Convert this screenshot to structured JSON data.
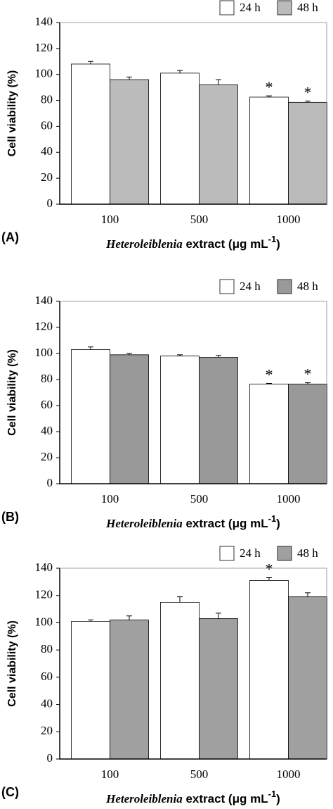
{
  "chart_data": [
    {
      "type": "bar",
      "panel_label": "(A)",
      "ylabel": "Cell viability (%)",
      "xlabel": {
        "italic": "Heteroleiblenia",
        "rest": " extract (μg mL",
        "sup": "-1",
        "end": ")"
      },
      "categories": [
        "100",
        "500",
        "1000"
      ],
      "series": [
        {
          "name": "24 h",
          "color": "#ffffff",
          "values": [
            108,
            101,
            82.5
          ],
          "errors": [
            2,
            2,
            1
          ],
          "significance": [
            null,
            null,
            "*"
          ]
        },
        {
          "name": "48 h",
          "color": "#bbbbbb",
          "values": [
            96,
            92,
            78.5
          ],
          "errors": [
            2,
            4,
            1
          ],
          "significance": [
            null,
            null,
            "*"
          ]
        }
      ],
      "ylim": [
        0,
        140
      ],
      "yticks": [
        0,
        20,
        40,
        60,
        80,
        100,
        120,
        140
      ]
    },
    {
      "type": "bar",
      "panel_label": "(B)",
      "ylabel": "Cell viability (%)",
      "xlabel": {
        "italic": "Heteroleiblenia",
        "rest": " extract (μg mL",
        "sup": "-1",
        "end": ")"
      },
      "categories": [
        "100",
        "500",
        "1000"
      ],
      "series": [
        {
          "name": "24 h",
          "color": "#ffffff",
          "values": [
            103,
            98,
            76.5
          ],
          "errors": [
            2,
            1,
            0.5
          ],
          "significance": [
            null,
            null,
            "*"
          ]
        },
        {
          "name": "48 h",
          "color": "#999999",
          "values": [
            99,
            97,
            76.5
          ],
          "errors": [
            1,
            1.5,
            1
          ],
          "significance": [
            null,
            null,
            "*"
          ]
        }
      ],
      "ylim": [
        0,
        140
      ],
      "yticks": [
        0,
        20,
        40,
        60,
        80,
        100,
        120,
        140
      ]
    },
    {
      "type": "bar",
      "panel_label": "(C)",
      "ylabel": "Cell viability (%)",
      "xlabel": {
        "italic": "Heteroleiblenia",
        "rest": " extract (μg mL",
        "sup": "-1",
        "end": ")"
      },
      "categories": [
        "100",
        "500",
        "1000"
      ],
      "series": [
        {
          "name": "24 h",
          "color": "#ffffff",
          "values": [
            101,
            115,
            131
          ],
          "errors": [
            1,
            4,
            2
          ],
          "significance": [
            null,
            null,
            "*"
          ]
        },
        {
          "name": "48 h",
          "color": "#a0a0a0",
          "values": [
            102,
            103,
            119
          ],
          "errors": [
            3,
            4,
            3
          ],
          "significance": [
            null,
            null,
            null
          ]
        }
      ],
      "ylim": [
        0,
        140
      ],
      "yticks": [
        0,
        20,
        40,
        60,
        80,
        100,
        120,
        140
      ]
    }
  ]
}
